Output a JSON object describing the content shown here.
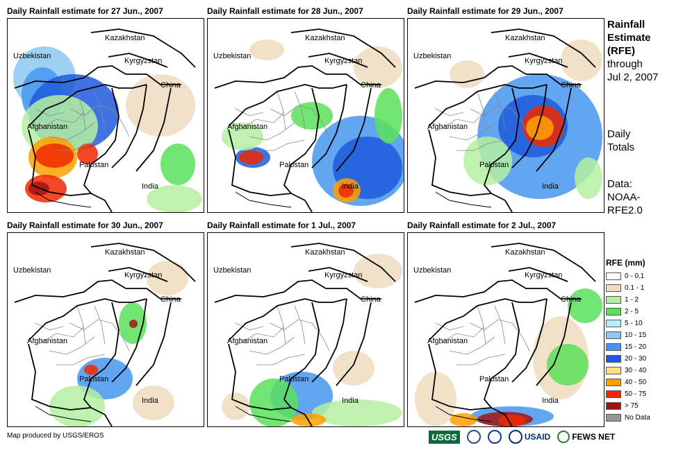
{
  "panels": [
    {
      "title": "Daily Rainfall estimate for 27 Jun., 2007",
      "rain": "heavy-west"
    },
    {
      "title": "Daily Rainfall estimate for 28 Jun., 2007",
      "rain": "heavy-southeast"
    },
    {
      "title": "Daily Rainfall estimate for 29 Jun., 2007",
      "rain": "heavy-northeast"
    },
    {
      "title": "Daily Rainfall estimate for 30 Jun., 2007",
      "rain": "light-east"
    },
    {
      "title": "Daily Rainfall estimate for 1 Jul., 2007",
      "rain": "light-south"
    },
    {
      "title": "Daily Rainfall estimate for 2 Jul., 2007",
      "rain": "heavy-south-edge"
    }
  ],
  "labels": {
    "kazakhstan": "Kazakhstan",
    "uzbekistan": "Uzbekistan",
    "kyrgyzstan": "Kyrgyzstan",
    "china": "China",
    "afghanistan": "Afghanistan",
    "pakistan": "Pakistan",
    "india": "India"
  },
  "sidebar": {
    "title_line1": "Rainfall",
    "title_line2": "Estimate",
    "title_line3": "(RFE)",
    "through_line1": "through",
    "through_line2": "Jul 2, 2007",
    "daily_line1": "Daily",
    "daily_line2": "Totals",
    "data_line1": "Data:",
    "data_line2": "NOAA-",
    "data_line3": "RFE2.0"
  },
  "legend": {
    "title": "RFE (mm)",
    "items": [
      {
        "label": "0 - 0.1",
        "color": "#ffffff"
      },
      {
        "label": "0.1 - 1",
        "color": "#f0dcc0"
      },
      {
        "label": "1 - 2",
        "color": "#b4f0a0"
      },
      {
        "label": "2 - 5",
        "color": "#5ae05a"
      },
      {
        "label": "5 - 10",
        "color": "#b4f0f0"
      },
      {
        "label": "10 - 15",
        "color": "#8cc8f0"
      },
      {
        "label": "15 - 20",
        "color": "#4696f0"
      },
      {
        "label": "20 - 30",
        "color": "#1e5adc"
      },
      {
        "label": "30 - 40",
        "color": "#ffe082"
      },
      {
        "label": "40 - 50",
        "color": "#ffa000"
      },
      {
        "label": "50 - 75",
        "color": "#f02800"
      },
      {
        "label": "> 75",
        "color": "#a01414"
      },
      {
        "label": "No Data",
        "color": "#969696"
      }
    ]
  },
  "footer": {
    "credit": "Map produced by USGS/EROS",
    "usgs": "USGS",
    "usaid": "USAID",
    "fews": "FEWS NET"
  }
}
